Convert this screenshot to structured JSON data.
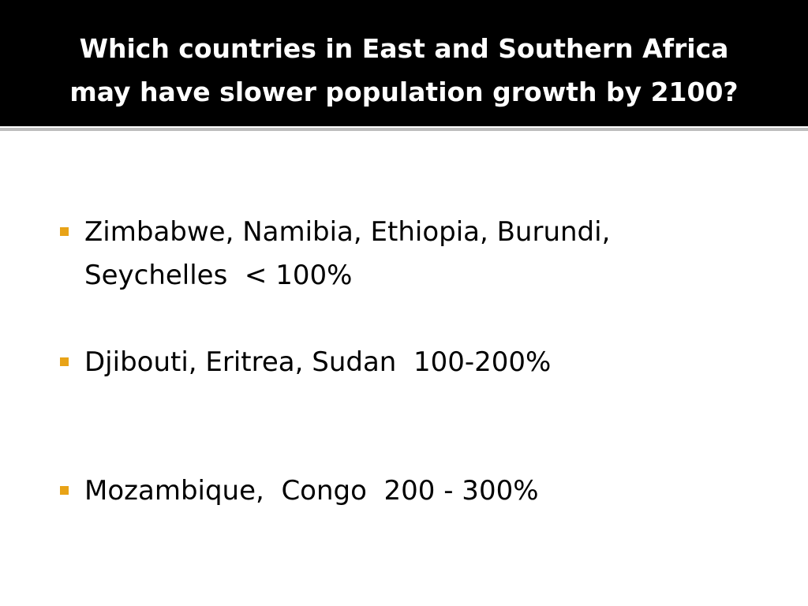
{
  "header": {
    "title": [
      "Which countries in East and Southern Africa",
      "may have slower population growth by 2100?"
    ]
  },
  "bullets": [
    {
      "lines": [
        "Zimbabwe, Namibia, Ethiopia, Burundi,",
        "Seychelles  < 100%"
      ]
    },
    {
      "lines": [
        "Djibouti, Eritrea, Sudan  100-200%"
      ]
    },
    {
      "lines": [
        "Mozambique,  Congo  200 - 300%"
      ]
    }
  ]
}
